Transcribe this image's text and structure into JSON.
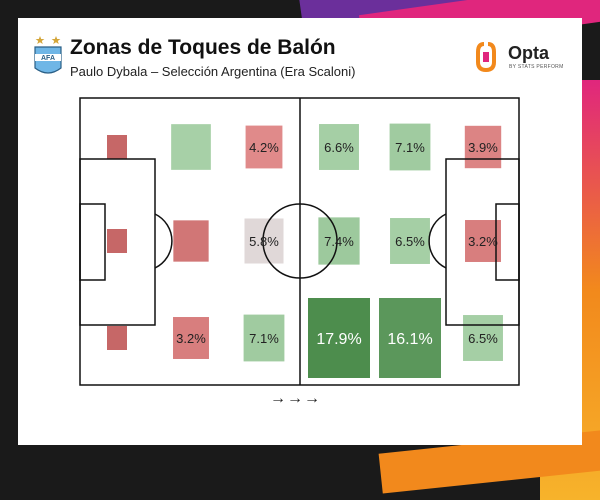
{
  "header": {
    "title": "Zonas de Toques de Balón",
    "subtitle": "Paulo Dybala – Selección Argentina (Era Scaloni)"
  },
  "brand": {
    "logo_word": "Opta",
    "logo_sub": "BY STATS PERFORM",
    "crest_icon": "afa-crest-icon",
    "crest_text": "AFA"
  },
  "footer": {
    "direction_arrows": "→→→"
  },
  "colors": {
    "accent_orange": "#f2891c",
    "accent_magenta": "#e0267d",
    "accent_purple": "#6b2f9b",
    "low_red": "#b04a4a",
    "mid_red": "#f2a1a1",
    "neutral": "#e0d8d8",
    "high_green": "#4d8d4d"
  },
  "chart_data": {
    "type": "heatmap",
    "title": "Zonas de Toques de Balón",
    "subtitle": "Paulo Dybala – Selección Argentina (Era Scaloni)",
    "grid": {
      "columns": 6,
      "rows": 3
    },
    "attack_direction": "left-to-right",
    "zones": [
      {
        "col": 0,
        "row": 0,
        "value": null,
        "label": "",
        "intensity": 0.1
      },
      {
        "col": 0,
        "row": 1,
        "value": null,
        "label": "",
        "intensity": 0.1
      },
      {
        "col": 0,
        "row": 2,
        "value": null,
        "label": "",
        "intensity": 0.1
      },
      {
        "col": 1,
        "row": 0,
        "value": null,
        "label": "",
        "intensity": 0.35
      },
      {
        "col": 1,
        "row": 1,
        "value": null,
        "label": "",
        "intensity": 0.15
      },
      {
        "col": 1,
        "row": 2,
        "value": 3.2,
        "label": "3.2%",
        "intensity": 0.18
      },
      {
        "col": 2,
        "row": 0,
        "value": 4.2,
        "label": "4.2%",
        "intensity": 0.22
      },
      {
        "col": 2,
        "row": 1,
        "value": 5.8,
        "label": "5.8%",
        "intensity": 0.32
      },
      {
        "col": 2,
        "row": 2,
        "value": 7.1,
        "label": "7.1%",
        "intensity": 0.4
      },
      {
        "col": 3,
        "row": 0,
        "value": 6.6,
        "label": "6.6%",
        "intensity": 0.36
      },
      {
        "col": 3,
        "row": 1,
        "value": 7.4,
        "label": "7.4%",
        "intensity": 0.42
      },
      {
        "col": 3,
        "row": 2,
        "value": 17.9,
        "label": "17.9%",
        "intensity": 1.0
      },
      {
        "col": 4,
        "row": 0,
        "value": 7.1,
        "label": "7.1%",
        "intensity": 0.4
      },
      {
        "col": 4,
        "row": 1,
        "value": 6.5,
        "label": "6.5%",
        "intensity": 0.36
      },
      {
        "col": 4,
        "row": 2,
        "value": 16.1,
        "label": "16.1%",
        "intensity": 0.9
      },
      {
        "col": 5,
        "row": 0,
        "value": 3.9,
        "label": "3.9%",
        "intensity": 0.2
      },
      {
        "col": 5,
        "row": 1,
        "value": 3.2,
        "label": "3.2%",
        "intensity": 0.18
      },
      {
        "col": 5,
        "row": 2,
        "value": 6.5,
        "label": "6.5%",
        "intensity": 0.36
      }
    ]
  }
}
